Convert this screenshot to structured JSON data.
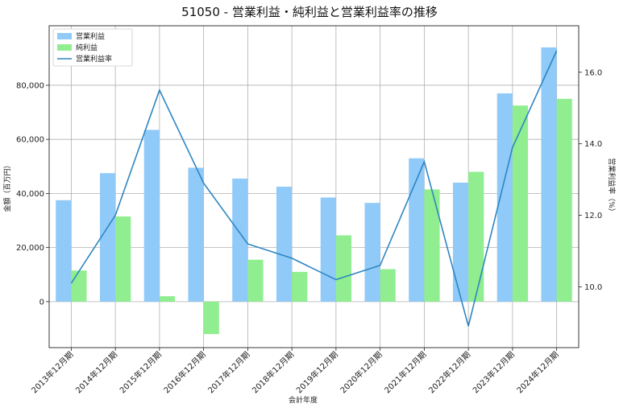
{
  "chart_data": {
    "type": "bar",
    "title": "51050 - 営業利益・純利益と営業利益率の推移",
    "xlabel": "会計年度",
    "ylabel": "金額（百万円）",
    "y2label": "営業利益率（%）",
    "categories": [
      "2013年12月期",
      "2014年12月期",
      "2015年12月期",
      "2016年12月期",
      "2017年12月期",
      "2018年12月期",
      "2019年12月期",
      "2020年12月期",
      "2021年12月期",
      "2022年12月期",
      "2023年12月期",
      "2024年12月期"
    ],
    "series": [
      {
        "name": "営業利益",
        "kind": "bar",
        "color": "#90caf9",
        "values": [
          37500,
          47500,
          63500,
          49500,
          45500,
          42500,
          38500,
          36500,
          53000,
          44000,
          77000,
          94000
        ]
      },
      {
        "name": "純利益",
        "kind": "bar",
        "color": "#90ee90",
        "values": [
          11500,
          31500,
          2000,
          -12000,
          15500,
          11000,
          24500,
          12000,
          41500,
          48000,
          72500,
          75000
        ]
      },
      {
        "name": "営業利益率",
        "kind": "line",
        "axis": "right",
        "color": "#2e86c1",
        "values": [
          10.1,
          12.0,
          15.5,
          12.9,
          11.2,
          10.8,
          10.2,
          10.6,
          13.5,
          8.9,
          13.9,
          16.6
        ]
      }
    ],
    "ylim": [
      -17000,
      102000
    ],
    "y2lim": [
      8.3,
      17.3
    ],
    "yticks": [
      0,
      20000,
      40000,
      60000,
      80000
    ],
    "yticklabels": [
      "0",
      "20,000",
      "40,000",
      "60,000",
      "80,000"
    ],
    "y2ticks": [
      10.0,
      12.0,
      14.0,
      16.0
    ],
    "y2ticklabels": [
      "10.0",
      "12.0",
      "14.0",
      "16.0"
    ],
    "grid": true,
    "legend_position": "top-left"
  }
}
